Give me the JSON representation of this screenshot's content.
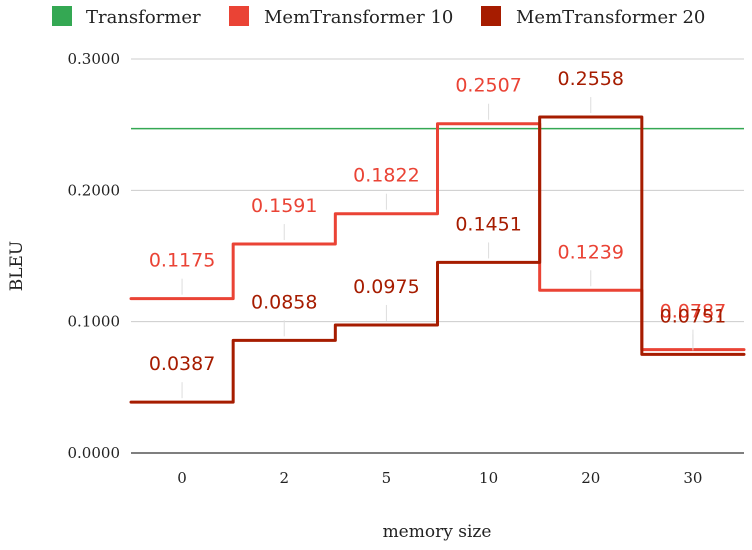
{
  "chart_data": {
    "type": "line",
    "title": "",
    "xlabel": "memory size",
    "ylabel": "BLEU",
    "categories": [
      "0",
      "2",
      "5",
      "10",
      "20",
      "30"
    ],
    "yticks": [
      "0.0000",
      "0.1000",
      "0.2000",
      "0.3000"
    ],
    "ylim": [
      0,
      0.3
    ],
    "grid": true,
    "legend_position": "top",
    "step_style": "stepped",
    "reference_line": {
      "name": "Transformer",
      "value": 0.247,
      "color": "#34a853"
    },
    "series": [
      {
        "name": "MemTransformer 10",
        "color": "#ea4335",
        "values": [
          0.1175,
          0.1591,
          0.1822,
          0.2507,
          0.1239,
          0.0787
        ],
        "labels": [
          "0.1175",
          "0.1591",
          "0.1822",
          "0.2507",
          "0.1239",
          "0.0787"
        ]
      },
      {
        "name": "MemTransformer 20",
        "color": "#a61c00",
        "values": [
          0.0387,
          0.0858,
          0.0975,
          0.1451,
          0.2558,
          0.0751
        ],
        "labels": [
          "0.0387",
          "0.0858",
          "0.0975",
          "0.1451",
          "0.2558",
          "0.0751"
        ]
      }
    ]
  }
}
